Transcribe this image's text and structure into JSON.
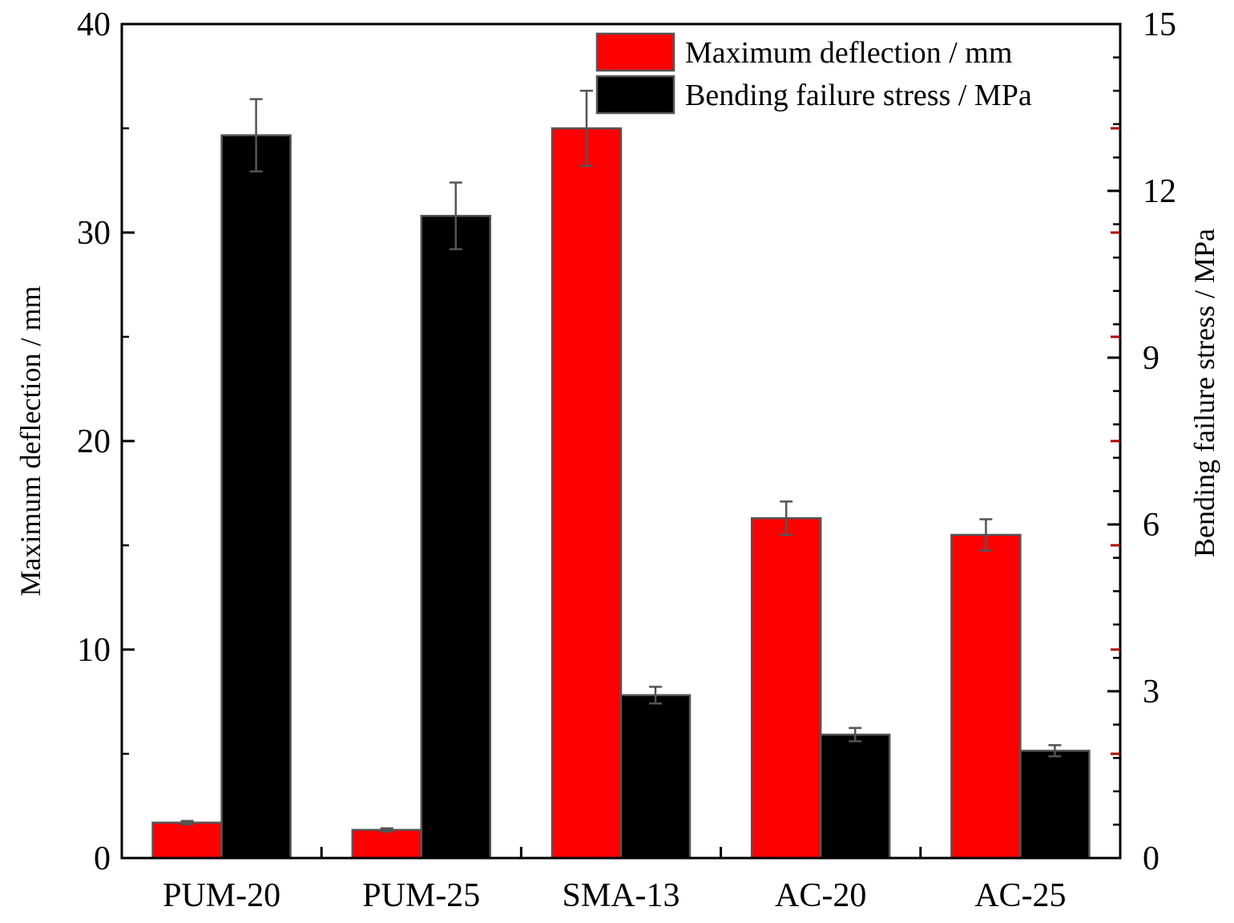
{
  "colors": {
    "series1": "#ff0000",
    "series2": "#000000",
    "bar_border": "#555555",
    "error_bar": "#555555",
    "right_tick_accent": "#aa0000"
  },
  "chart_data": {
    "type": "bar",
    "categories": [
      "PUM-20",
      "PUM-25",
      "SMA-13",
      "AC-20",
      "AC-25"
    ],
    "series": [
      {
        "name": "Maximum deflection / mm",
        "axis": "left",
        "values": [
          1.7,
          1.35,
          35.0,
          16.3,
          15.5
        ],
        "errors": [
          0.08,
          0.08,
          1.8,
          0.8,
          0.75
        ]
      },
      {
        "name": "Bending failure stress / MPa",
        "axis": "right",
        "values": [
          13.0,
          11.55,
          2.93,
          2.22,
          1.93
        ],
        "errors": [
          0.65,
          0.6,
          0.15,
          0.12,
          0.1
        ]
      }
    ],
    "y_left": {
      "label": "Maximum deflection / mm",
      "range": [
        0,
        40
      ],
      "ticks": [
        0,
        10,
        20,
        30,
        40
      ],
      "tick_labels": [
        "0",
        "10",
        "20",
        "30",
        "40"
      ]
    },
    "y_right": {
      "label": "Bending failure stress / MPa",
      "range": [
        0,
        15
      ],
      "ticks": [
        0,
        3,
        6,
        9,
        12,
        15
      ],
      "tick_labels": [
        "0",
        "3",
        "6",
        "9",
        "12",
        "15"
      ]
    },
    "legend_position": "top-right",
    "grid": false
  }
}
